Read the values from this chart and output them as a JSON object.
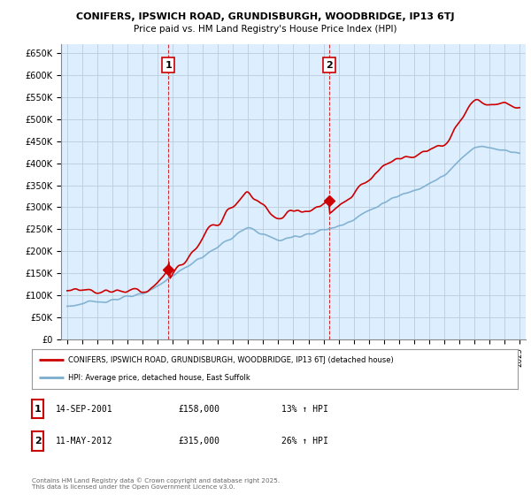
{
  "title1": "CONIFERS, IPSWICH ROAD, GRUNDISBURGH, WOODBRIDGE, IP13 6TJ",
  "title2": "Price paid vs. HM Land Registry's House Price Index (HPI)",
  "ylabel_ticks": [
    "£0",
    "£50K",
    "£100K",
    "£150K",
    "£200K",
    "£250K",
    "£300K",
    "£350K",
    "£400K",
    "£450K",
    "£500K",
    "£550K",
    "£600K",
    "£650K"
  ],
  "ytick_vals": [
    0,
    50000,
    100000,
    150000,
    200000,
    250000,
    300000,
    350000,
    400000,
    450000,
    500000,
    550000,
    600000,
    650000
  ],
  "ylim": [
    0,
    670000
  ],
  "sale1_year": 2001.71,
  "sale1_price": 158000,
  "sale2_year": 2012.36,
  "sale2_price": 315000,
  "legend_line1": "CONIFERS, IPSWICH ROAD, GRUNDISBURGH, WOODBRIDGE, IP13 6TJ (detached house)",
  "legend_line2": "HPI: Average price, detached house, East Suffolk",
  "table_row1": [
    "1",
    "14-SEP-2001",
    "£158,000",
    "13% ↑ HPI"
  ],
  "table_row2": [
    "2",
    "11-MAY-2012",
    "£315,000",
    "26% ↑ HPI"
  ],
  "footnote": "Contains HM Land Registry data © Crown copyright and database right 2025.\nThis data is licensed under the Open Government Licence v3.0.",
  "red_color": "#cc0000",
  "blue_color": "#7aadce",
  "grid_color": "#bbccdd",
  "plot_bg": "#ddeeff",
  "label_box_color": "#cc0000"
}
